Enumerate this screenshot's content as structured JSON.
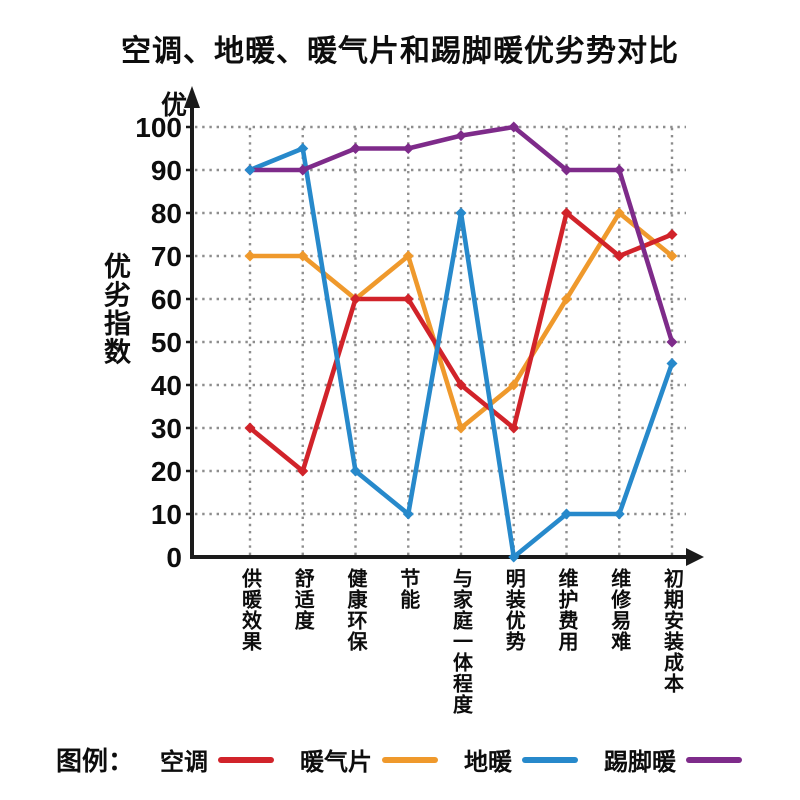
{
  "title": "空调、地暖、暖气片和踢脚暖优劣势对比",
  "y_axis": {
    "top_label": "优",
    "ticks": [
      0,
      10,
      20,
      30,
      40,
      50,
      60,
      70,
      80,
      90,
      100
    ]
  },
  "legend": {
    "prefix": "图例："
  },
  "chart_data": {
    "type": "line",
    "title": "空调、地暖、暖气片和踢脚暖优劣势对比",
    "ylabel": "优劣指数",
    "xlabel": "",
    "ylim": [
      0,
      100
    ],
    "y_tick_step": 10,
    "grid": true,
    "legend_position": "bottom",
    "categories": [
      "供暖效果",
      "舒适度",
      "健康环保",
      "节能",
      "与家庭一体程度",
      "明装优势",
      "维护费用",
      "维修易难",
      "初期安装成本"
    ],
    "series": [
      {
        "name": "空调",
        "slug": "air-conditioner",
        "color": "#d1232a",
        "values": [
          30,
          20,
          60,
          60,
          40,
          30,
          80,
          70,
          75
        ]
      },
      {
        "name": "暖气片",
        "slug": "radiator",
        "color": "#ef992c",
        "values": [
          70,
          70,
          60,
          70,
          30,
          40,
          60,
          80,
          70
        ]
      },
      {
        "name": "地暖",
        "slug": "floor-heating",
        "color": "#2789cb",
        "values": [
          90,
          95,
          20,
          10,
          80,
          0,
          10,
          10,
          45
        ]
      },
      {
        "name": "踢脚暖",
        "slug": "baseboard-heater",
        "color": "#7e2b8a",
        "values": [
          90,
          90,
          95,
          95,
          98,
          100,
          90,
          90,
          50
        ]
      }
    ]
  }
}
